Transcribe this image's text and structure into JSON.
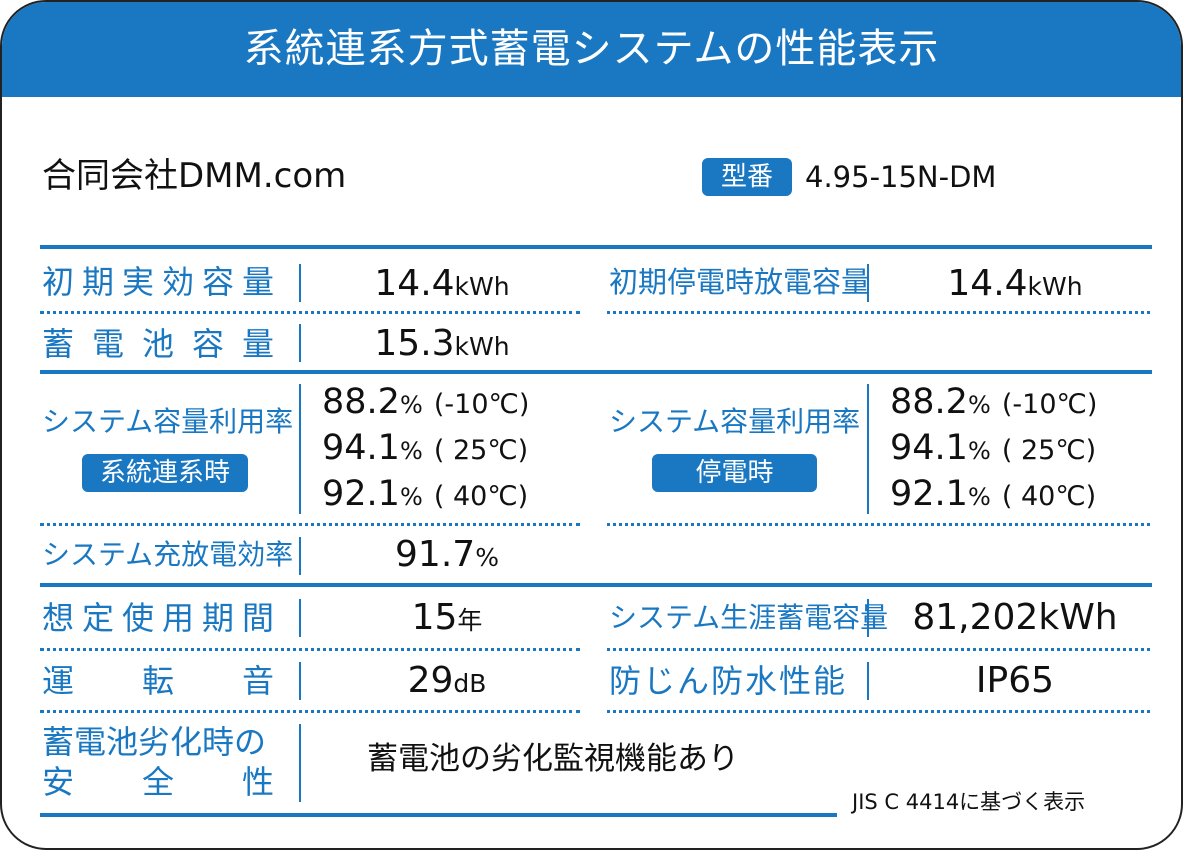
{
  "title": "系統連系方式蓄電システムの性能表示",
  "company": "合同会社DMM.com",
  "model": {
    "badge": "型番",
    "value": "4.95-15N-DM"
  },
  "rows": {
    "initial_capacity": {
      "label": "初期実効容量",
      "value": "14.4",
      "unit": "kWh"
    },
    "blackout_capacity": {
      "label": "初期停電時放電容量",
      "value": "14.4",
      "unit": "kWh"
    },
    "battery_capacity": {
      "label": "蓄電池容量",
      "value": "15.3",
      "unit": "kWh"
    },
    "util_grid": {
      "label": "システム容量利用率",
      "badge": "系統連系時",
      "lines": [
        {
          "value": "88.2",
          "unit": "%",
          "temp": "(-10℃)"
        },
        {
          "value": "94.1",
          "unit": "%",
          "temp": "( 25℃)"
        },
        {
          "value": "92.1",
          "unit": "%",
          "temp": "( 40℃)"
        }
      ]
    },
    "util_blackout": {
      "label": "システム容量利用率",
      "badge": "停電時",
      "lines": [
        {
          "value": "88.2",
          "unit": "%",
          "temp": "(-10℃)"
        },
        {
          "value": "94.1",
          "unit": "%",
          "temp": "( 25℃)"
        },
        {
          "value": "92.1",
          "unit": "%",
          "temp": "( 40℃)"
        }
      ]
    },
    "efficiency": {
      "label": "システム充放電効率",
      "value": "91.7",
      "unit": "%"
    },
    "lifetime": {
      "label": "想定使用期間",
      "value": "15",
      "unit": "年"
    },
    "lifetime_capacity": {
      "label": "システム生涯蓄電容量",
      "value": "81,202kWh"
    },
    "noise": {
      "label": "運転音",
      "value": "29",
      "unit": "dB"
    },
    "ip": {
      "label": "防じん防水性能",
      "value": "IP65"
    },
    "safety": {
      "label_line1": "蓄電池劣化時の",
      "label_line2": "安全性",
      "value": "蓄電池の劣化監視機能あり"
    }
  },
  "footer": "JIS C 4414に基づく表示"
}
